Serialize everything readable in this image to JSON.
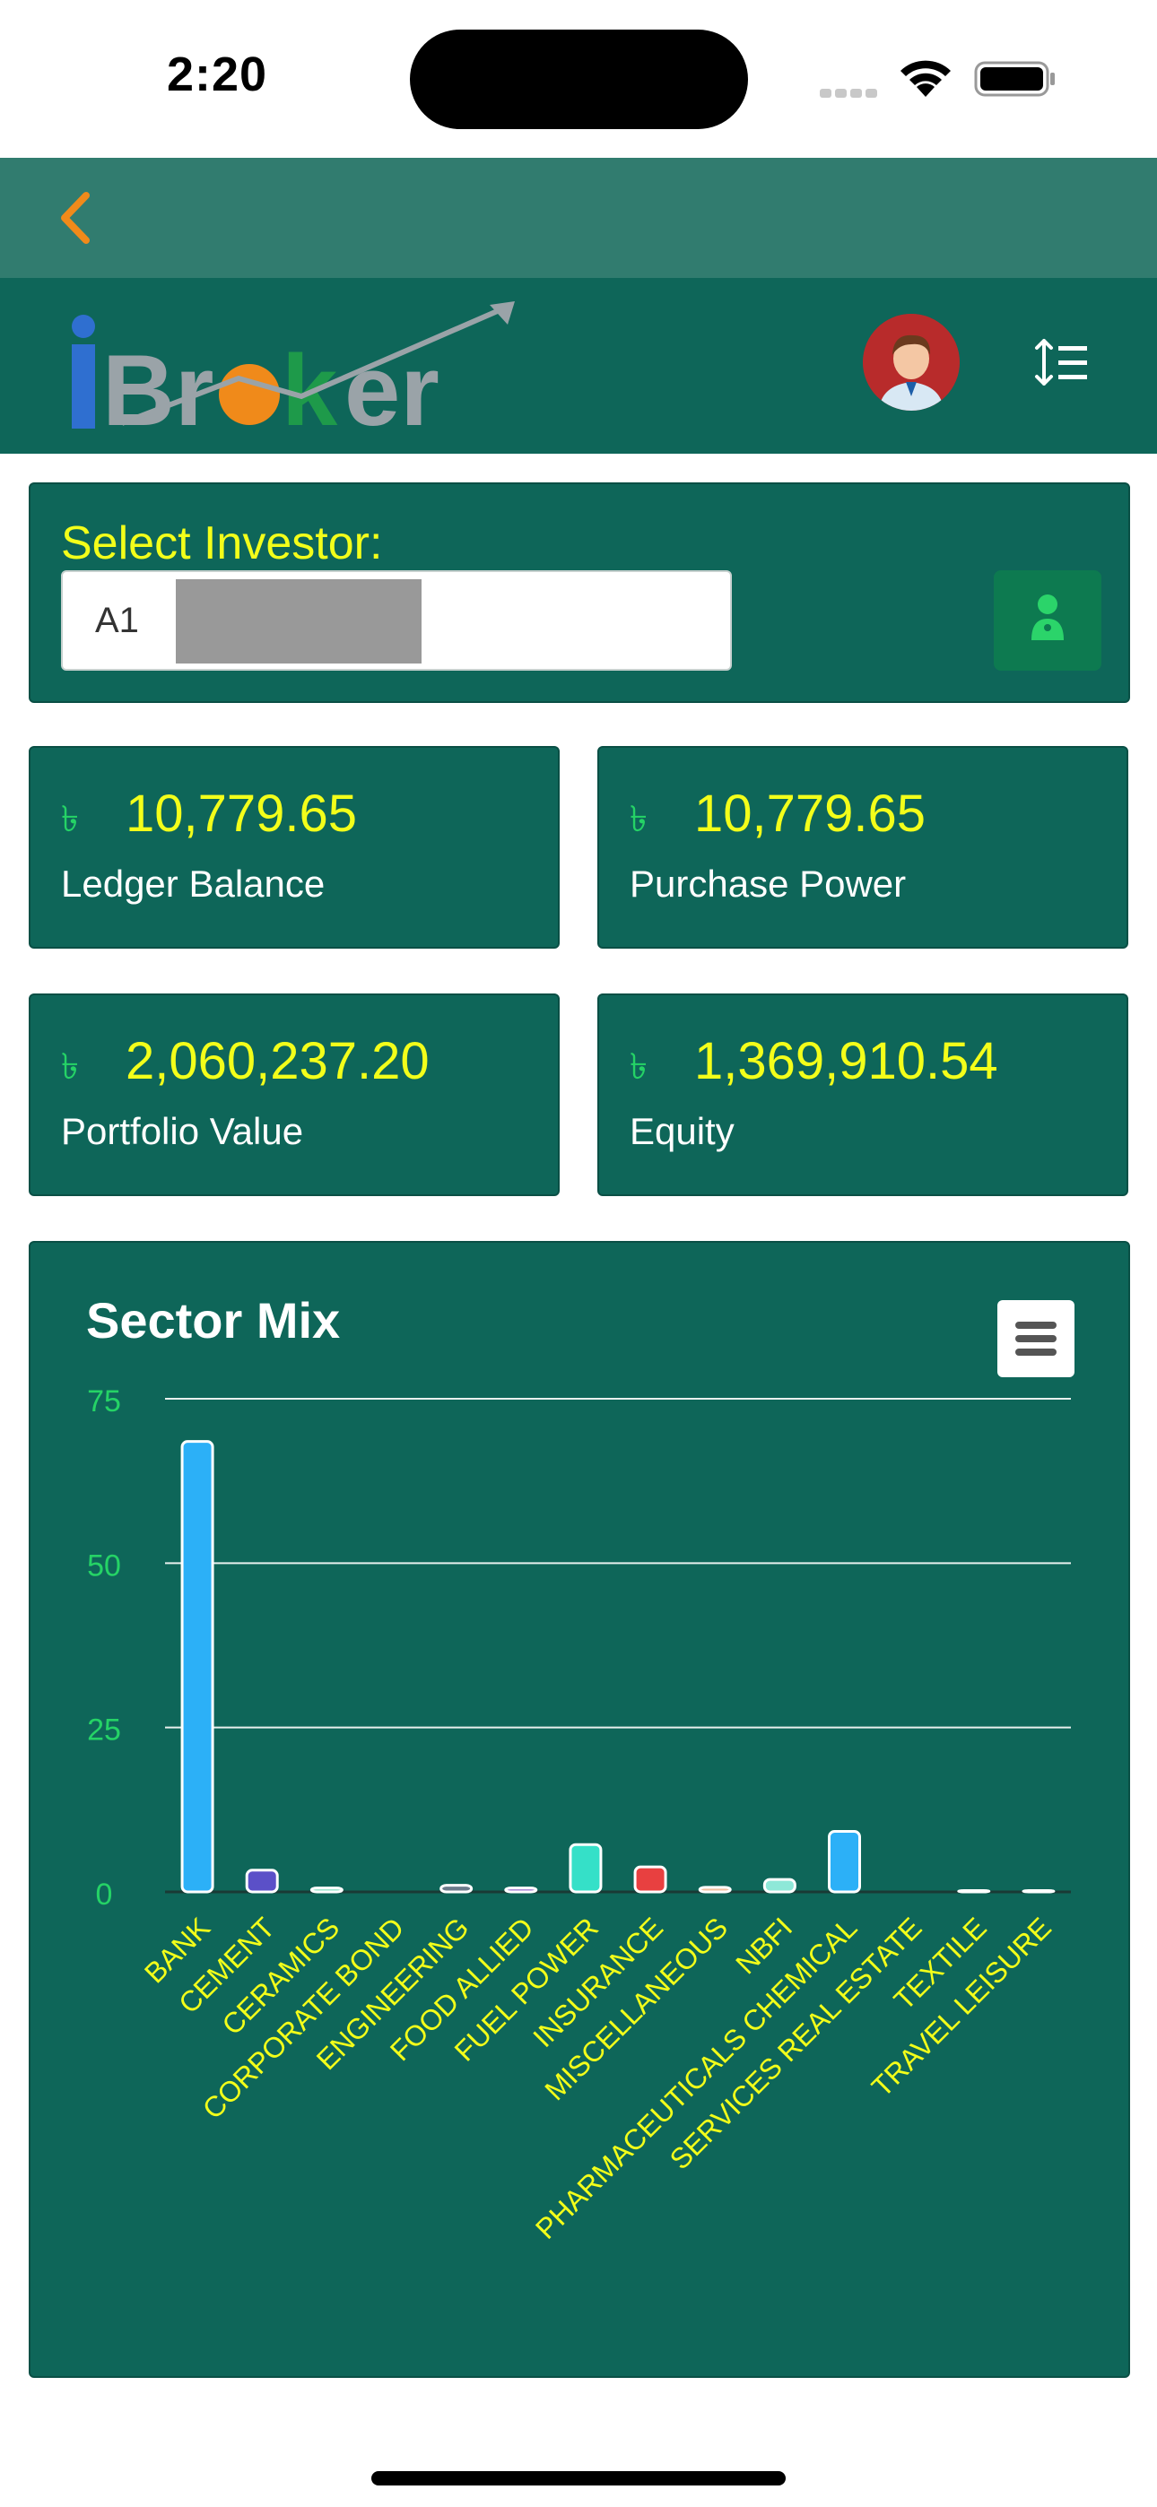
{
  "status_bar": {
    "time": "2:20"
  },
  "header": {
    "back_icon": "chevron-left-icon",
    "brand": "iBroker",
    "avatar_icon": "user-avatar",
    "menu_icon": "sort-list-icon"
  },
  "investor": {
    "label": "Select Investor:",
    "value": "A1",
    "button_icon": "person-icon"
  },
  "stats": [
    {
      "currency": "৳",
      "value": "10,779.65",
      "label": "Ledger Balance"
    },
    {
      "currency": "৳",
      "value": "10,779.65",
      "label": "Purchase Power"
    },
    {
      "currency": "৳",
      "value": "2,060,237.20",
      "label": "Portfolio Value"
    },
    {
      "currency": "৳",
      "value": "1,369,910.54",
      "label": "Equity"
    }
  ],
  "chart_data": {
    "type": "bar",
    "title": "Sector Mix",
    "categories": [
      "BANK",
      "CEMENT",
      "CERAMICS",
      "CORPORATE BOND",
      "ENGINEERING",
      "FOOD ALLIED",
      "FUEL POWER",
      "INSURANCE",
      "MISCELLANEOUS",
      "NBFI",
      "PHARMACEUTICALS CHEMICAL",
      "SERVICES REAL ESTATE",
      "TEXTILE",
      "TRAVEL LEISURE"
    ],
    "values": [
      68.5,
      3.3,
      0.6,
      0,
      1.0,
      0.6,
      7.2,
      3.8,
      0.7,
      1.9,
      9.2,
      0,
      0.2,
      0.2
    ],
    "colors": [
      "#2cb0f7",
      "#5b50c8",
      "#8fe3c8",
      "#7a8a8a",
      "#6b7b8b",
      "#a07ad0",
      "#35e0c8",
      "#e84040",
      "#f2c0a0",
      "#8ee8d8",
      "#2cb0f7",
      "#7cc0f0",
      "#f0f0f0",
      "#f0f0f0"
    ],
    "yticks": [
      0,
      25,
      50,
      75
    ],
    "ylim": [
      0,
      75
    ],
    "grid": true,
    "menu_icon": "hamburger-icon"
  }
}
